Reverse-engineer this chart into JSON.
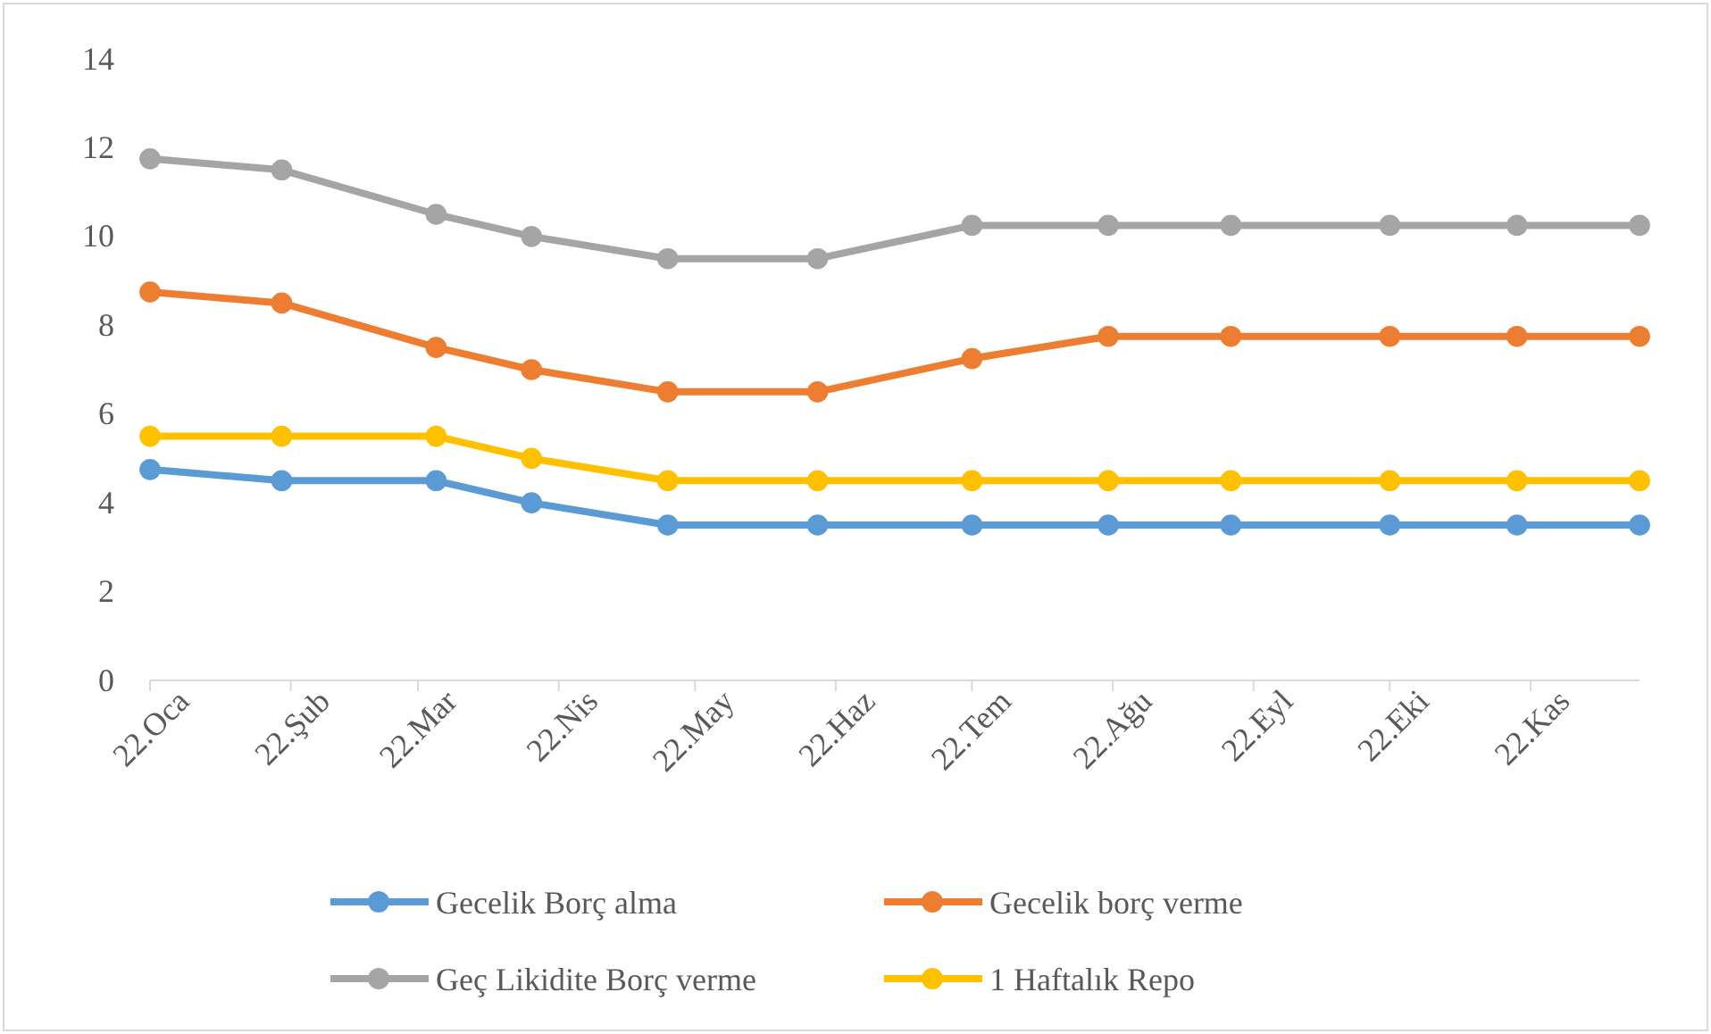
{
  "chart_data": {
    "type": "line",
    "x": [
      "2022-01-01",
      "2022-01-30",
      "2022-03-05",
      "2022-03-26",
      "2022-04-25",
      "2022-05-28",
      "2022-07-01",
      "2022-07-31",
      "2022-08-27",
      "2022-10-01",
      "2022-10-29",
      "2022-11-25"
    ],
    "xlim": [
      "2022-01-01",
      "2022-11-25"
    ],
    "xticks": [
      {
        "value": "2022-01-01",
        "label": "22.Oca"
      },
      {
        "value": "2022-02-01",
        "label": "22.Şub"
      },
      {
        "value": "2022-03-01",
        "label": "22.Mar"
      },
      {
        "value": "2022-04-01",
        "label": "22.Nis"
      },
      {
        "value": "2022-05-01",
        "label": "22.May"
      },
      {
        "value": "2022-06-01",
        "label": "22.Haz"
      },
      {
        "value": "2022-07-01",
        "label": "22.Tem"
      },
      {
        "value": "2022-08-01",
        "label": "22.Ağu"
      },
      {
        "value": "2022-09-01",
        "label": "22.Eyl"
      },
      {
        "value": "2022-10-01",
        "label": "22.Eki"
      },
      {
        "value": "2022-11-01",
        "label": "22.Kas"
      }
    ],
    "ylim": [
      0,
      14
    ],
    "yticks": [
      0,
      2,
      4,
      6,
      8,
      10,
      12,
      14
    ],
    "grid": false,
    "legend": "bottom",
    "marker": "circle",
    "line_style": "solid",
    "series": [
      {
        "name": "Gecelik Borç alma",
        "color": "#5b9bd5",
        "values": [
          4.75,
          4.5,
          4.5,
          4,
          3.5,
          3.5,
          3.5,
          3.5,
          3.5,
          3.5,
          3.5,
          3.5
        ]
      },
      {
        "name": "Gecelik borç verme",
        "color": "#ed7d31",
        "values": [
          8.75,
          8.5,
          7.5,
          7,
          6.5,
          6.5,
          7.25,
          7.75,
          7.75,
          7.75,
          7.75,
          7.75
        ]
      },
      {
        "name": "Geç Likidite Borç verme",
        "color": "#a5a5a5",
        "values": [
          11.75,
          11.5,
          10.5,
          10,
          9.5,
          9.5,
          10.25,
          10.25,
          10.25,
          10.25,
          10.25,
          10.25
        ]
      },
      {
        "name": "1 Haftalık Repo",
        "color": "#ffc000",
        "values": [
          5.5,
          5.5,
          5.5,
          5,
          4.5,
          4.5,
          4.5,
          4.5,
          4.5,
          4.5,
          4.5,
          4.5
        ]
      }
    ]
  }
}
